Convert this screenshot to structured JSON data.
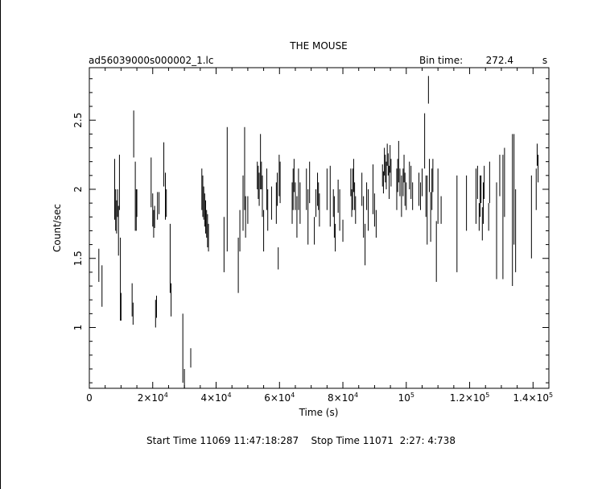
{
  "chart_data": {
    "type": "scatter",
    "title": "THE MOUSE",
    "subtitle_left": "ad56039000s000002_1.lc",
    "bin_time_label": "Bin time:",
    "bin_time_value": "272.4",
    "bin_time_unit": "s",
    "xlabel": "Time (s)",
    "ylabel": "Count/sec",
    "xlim": [
      0,
      145000
    ],
    "ylim": [
      0.56,
      2.88
    ],
    "x_ticks": [
      0,
      20000,
      40000,
      60000,
      80000,
      100000,
      120000,
      140000
    ],
    "x_tick_labels": [
      {
        "mant": "0",
        "exp": ""
      },
      {
        "mant": "2×10",
        "exp": "4"
      },
      {
        "mant": "4×10",
        "exp": "4"
      },
      {
        "mant": "6×10",
        "exp": "4"
      },
      {
        "mant": "8×10",
        "exp": "4"
      },
      {
        "mant": "10",
        "exp": "5"
      },
      {
        "mant": "1.2×10",
        "exp": "5"
      },
      {
        "mant": "1.4×10",
        "exp": "5"
      }
    ],
    "y_ticks": [
      1,
      1.5,
      2,
      2.5
    ],
    "y_tick_labels": [
      "1",
      "1.5",
      "2",
      "2.5"
    ],
    "points": [
      [
        3000,
        1.45,
        0.12
      ],
      [
        4000,
        1.3,
        0.15
      ],
      [
        8000,
        2.0,
        0.22
      ],
      [
        8300,
        1.85,
        0.15
      ],
      [
        8600,
        1.8,
        0.12
      ],
      [
        8900,
        1.9,
        0.1
      ],
      [
        9200,
        1.7,
        0.18
      ],
      [
        9500,
        2.05,
        0.2
      ],
      [
        9800,
        1.35,
        0.3
      ],
      [
        10000,
        1.15,
        0.1
      ],
      [
        13500,
        1.2,
        0.12
      ],
      [
        13800,
        1.1,
        0.08
      ],
      [
        14000,
        2.4,
        0.17
      ],
      [
        14500,
        1.95,
        0.25
      ],
      [
        14800,
        1.85,
        0.15
      ],
      [
        15000,
        1.9,
        0.1
      ],
      [
        19500,
        2.05,
        0.18
      ],
      [
        20000,
        1.85,
        0.12
      ],
      [
        20300,
        1.75,
        0.1
      ],
      [
        20600,
        1.8,
        0.08
      ],
      [
        20900,
        1.1,
        0.1
      ],
      [
        21200,
        1.15,
        0.08
      ],
      [
        21500,
        1.88,
        0.1
      ],
      [
        22000,
        1.9,
        0.08
      ],
      [
        23500,
        2.18,
        0.16
      ],
      [
        24000,
        1.95,
        0.17
      ],
      [
        24300,
        1.9,
        0.1
      ],
      [
        25500,
        1.5,
        0.25
      ],
      [
        25800,
        1.2,
        0.12
      ],
      [
        29500,
        0.85,
        0.25
      ],
      [
        30000,
        0.62,
        0.08
      ],
      [
        32000,
        0.78,
        0.07
      ],
      [
        35500,
        2.0,
        0.15
      ],
      [
        35800,
        1.95,
        0.15
      ],
      [
        36100,
        1.9,
        0.12
      ],
      [
        36400,
        1.85,
        0.12
      ],
      [
        36700,
        1.8,
        0.12
      ],
      [
        37000,
        1.75,
        0.1
      ],
      [
        37300,
        1.7,
        0.12
      ],
      [
        37600,
        1.65,
        0.1
      ],
      [
        42500,
        1.6,
        0.2
      ],
      [
        43500,
        2.0,
        0.45
      ],
      [
        47000,
        1.45,
        0.2
      ],
      [
        47500,
        1.7,
        0.15
      ],
      [
        48500,
        1.9,
        0.2
      ],
      [
        49000,
        2.15,
        0.3
      ],
      [
        49300,
        1.8,
        0.15
      ],
      [
        50000,
        1.85,
        0.1
      ],
      [
        53000,
        2.1,
        0.1
      ],
      [
        53300,
        2.05,
        0.12
      ],
      [
        53600,
        2.0,
        0.12
      ],
      [
        54000,
        2.2,
        0.2
      ],
      [
        54300,
        2.1,
        0.1
      ],
      [
        54600,
        1.95,
        0.15
      ],
      [
        55000,
        1.7,
        0.15
      ],
      [
        56000,
        2.0,
        0.15
      ],
      [
        56300,
        1.85,
        0.15
      ],
      [
        57500,
        1.9,
        0.12
      ],
      [
        59000,
        1.9,
        0.15
      ],
      [
        59300,
        2.0,
        0.12
      ],
      [
        59600,
        1.5,
        0.08
      ],
      [
        59900,
        2.1,
        0.15
      ],
      [
        60200,
        2.05,
        0.15
      ],
      [
        64000,
        1.9,
        0.15
      ],
      [
        64300,
        2.0,
        0.15
      ],
      [
        64600,
        2.1,
        0.12
      ],
      [
        65000,
        1.95,
        0.1
      ],
      [
        65500,
        1.8,
        0.15
      ],
      [
        66000,
        2.0,
        0.15
      ],
      [
        66500,
        1.9,
        0.15
      ],
      [
        68500,
        2.0,
        0.15
      ],
      [
        69000,
        1.8,
        0.2
      ],
      [
        69500,
        2.05,
        0.15
      ],
      [
        71000,
        1.7,
        0.1
      ],
      [
        71500,
        1.9,
        0.1
      ],
      [
        72000,
        2.0,
        0.12
      ],
      [
        72300,
        1.95,
        0.1
      ],
      [
        72600,
        1.85,
        0.12
      ],
      [
        75000,
        2.0,
        0.15
      ],
      [
        76000,
        1.95,
        0.22
      ],
      [
        77000,
        1.9,
        0.1
      ],
      [
        77300,
        1.8,
        0.15
      ],
      [
        77600,
        1.65,
        0.1
      ],
      [
        78500,
        1.95,
        0.12
      ],
      [
        79000,
        1.85,
        0.15
      ],
      [
        80000,
        1.7,
        0.08
      ],
      [
        82500,
        2.05,
        0.1
      ],
      [
        82800,
        1.9,
        0.1
      ],
      [
        83100,
        2.0,
        0.15
      ],
      [
        83400,
        2.1,
        0.12
      ],
      [
        83700,
        1.95,
        0.1
      ],
      [
        84000,
        1.85,
        0.1
      ],
      [
        86000,
        2.0,
        0.12
      ],
      [
        86500,
        1.8,
        0.15
      ],
      [
        87000,
        1.6,
        0.15
      ],
      [
        87500,
        1.95,
        0.1
      ],
      [
        88000,
        1.85,
        0.15
      ],
      [
        89500,
        2.0,
        0.18
      ],
      [
        90000,
        1.85,
        0.12
      ],
      [
        90500,
        1.75,
        0.1
      ],
      [
        92500,
        2.1,
        0.08
      ],
      [
        92800,
        2.05,
        0.08
      ],
      [
        93100,
        2.2,
        0.1
      ],
      [
        93400,
        2.15,
        0.1
      ],
      [
        93700,
        2.1,
        0.1
      ],
      [
        94000,
        2.25,
        0.08
      ],
      [
        94300,
        2.18,
        0.08
      ],
      [
        94600,
        2.05,
        0.12
      ],
      [
        94900,
        2.22,
        0.1
      ],
      [
        95200,
        2.12,
        0.1
      ],
      [
        97000,
        2.0,
        0.15
      ],
      [
        97300,
        2.1,
        0.12
      ],
      [
        97600,
        2.2,
        0.15
      ],
      [
        98000,
        2.05,
        0.1
      ],
      [
        98500,
        1.95,
        0.15
      ],
      [
        99000,
        2.05,
        0.1
      ],
      [
        99300,
        2.15,
        0.1
      ],
      [
        99600,
        2.0,
        0.12
      ],
      [
        100000,
        1.95,
        0.1
      ],
      [
        101000,
        2.1,
        0.1
      ],
      [
        101500,
        2.05,
        0.12
      ],
      [
        102000,
        1.95,
        0.1
      ],
      [
        104000,
        2.0,
        0.12
      ],
      [
        104500,
        1.95,
        0.1
      ],
      [
        105000,
        2.05,
        0.1
      ],
      [
        105800,
        2.35,
        0.2
      ],
      [
        106200,
        1.95,
        0.15
      ],
      [
        106600,
        1.85,
        0.25
      ],
      [
        107000,
        2.72,
        0.1
      ],
      [
        107300,
        2.1,
        0.12
      ],
      [
        107700,
        1.8,
        0.18
      ],
      [
        108100,
        2.0,
        0.15
      ],
      [
        108400,
        2.1,
        0.12
      ],
      [
        109500,
        1.55,
        0.22
      ],
      [
        110000,
        1.95,
        0.2
      ],
      [
        111000,
        1.85,
        0.1
      ],
      [
        116000,
        1.75,
        0.35
      ],
      [
        119000,
        1.9,
        0.2
      ],
      [
        122000,
        1.95,
        0.2
      ],
      [
        122500,
        2.05,
        0.12
      ],
      [
        123000,
        1.8,
        0.1
      ],
      [
        123300,
        1.95,
        0.15
      ],
      [
        123600,
        2.0,
        0.1
      ],
      [
        124000,
        1.75,
        0.12
      ],
      [
        124300,
        1.9,
        0.15
      ],
      [
        124600,
        2.05,
        0.12
      ],
      [
        126000,
        1.8,
        0.1
      ],
      [
        126300,
        2.05,
        0.15
      ],
      [
        128500,
        1.7,
        0.35
      ],
      [
        129500,
        2.1,
        0.15
      ],
      [
        130500,
        1.8,
        0.45
      ],
      [
        131000,
        2.05,
        0.25
      ],
      [
        133500,
        1.85,
        0.55
      ],
      [
        134000,
        2.0,
        0.4
      ],
      [
        134500,
        1.7,
        0.3
      ],
      [
        139500,
        1.8,
        0.3
      ],
      [
        141000,
        2.0,
        0.15
      ],
      [
        141300,
        2.25,
        0.08
      ],
      [
        141600,
        2.15,
        0.1
      ]
    ]
  },
  "footer": {
    "start_label": "Start Time",
    "start_value": "11069 11:47:18:287",
    "stop_label": "Stop Time",
    "stop_value": "11071  2:27: 4:738"
  }
}
